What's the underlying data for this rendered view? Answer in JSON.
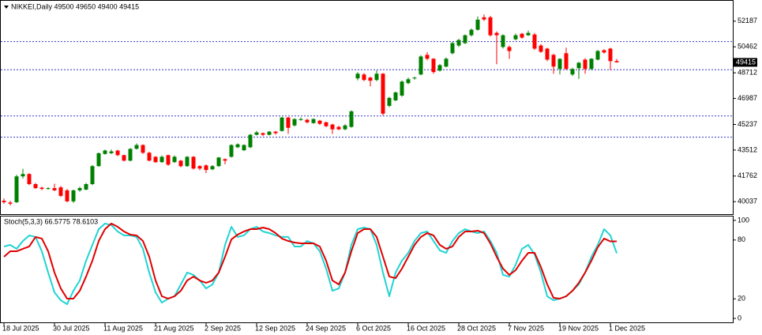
{
  "chart_data": [
    {
      "type": "candlestick",
      "title": "NIKKEI,Daily 49500 49650 49400 49415",
      "up_color": "#008000",
      "down_color": "#ff0000",
      "level_color": "#3535c8",
      "categories": [
        "18 Jul 2025",
        null,
        null,
        null,
        null,
        null,
        null,
        null,
        "30 Jul 2025",
        null,
        null,
        null,
        null,
        null,
        null,
        null,
        "11 Aug 2025",
        null,
        null,
        null,
        null,
        null,
        null,
        null,
        "21 Aug 2025",
        null,
        null,
        null,
        null,
        null,
        null,
        null,
        "2 Sep 2025",
        null,
        null,
        null,
        null,
        null,
        null,
        null,
        "12 Sep 2025",
        null,
        null,
        null,
        null,
        null,
        null,
        null,
        "24 Sep 2025",
        null,
        null,
        null,
        null,
        null,
        null,
        null,
        "6 Oct 2025",
        null,
        null,
        null,
        null,
        null,
        null,
        null,
        "16 Oct 2025",
        null,
        null,
        null,
        null,
        null,
        null,
        null,
        "28 Oct 2025",
        null,
        null,
        null,
        null,
        null,
        null,
        null,
        "7 Nov 2025",
        null,
        null,
        null,
        null,
        null,
        null,
        null,
        "19 Nov 2025",
        null,
        null,
        null,
        null,
        null,
        null,
        null,
        "1 Dec 2025",
        null
      ],
      "open": [
        40100,
        39980,
        40000,
        41740,
        41900,
        41220,
        40980,
        40900,
        40950,
        41000,
        40800,
        40060,
        40800,
        40850,
        41220,
        42430,
        43250,
        43300,
        43480,
        43170,
        42800,
        43600,
        43850,
        43330,
        43060,
        42700,
        43170,
        42700,
        42800,
        42430,
        43060,
        42430,
        42480,
        42220,
        42430,
        42900,
        43060,
        43700,
        43500,
        43700,
        44540,
        44650,
        44540,
        44750,
        44800,
        45700,
        45170,
        45540,
        45550,
        45330,
        45490,
        45380,
        45230,
        45070,
        44910,
        45070,
        48340,
        48600,
        48390,
        48230,
        48650,
        46490,
        46860,
        47180,
        48020,
        48340,
        48600,
        49920,
        49660,
        48860,
        49130,
        50030,
        50550,
        50710,
        51240,
        51610,
        52450,
        52450,
        51400,
        50450,
        50450,
        50970,
        51340,
        51240,
        51290,
        50550,
        50340,
        49920,
        48970,
        50030,
        48600,
        49020,
        49600,
        48970,
        49600,
        50230,
        50340,
        49500
      ],
      "high": [
        40250,
        40100,
        41850,
        42250,
        41950,
        41300,
        41050,
        41000,
        41250,
        41100,
        40900,
        40850,
        41050,
        41300,
        42500,
        43350,
        43550,
        43550,
        43530,
        43200,
        43650,
        43960,
        43900,
        43400,
        43100,
        43150,
        43200,
        43150,
        42850,
        43100,
        43100,
        42500,
        42550,
        42500,
        43050,
        42950,
        43900,
        43960,
        43900,
        44600,
        44800,
        44700,
        44800,
        44800,
        45750,
        45750,
        45650,
        45700,
        45620,
        45650,
        45550,
        45420,
        45280,
        45150,
        45250,
        46180,
        48750,
        48700,
        48450,
        48870,
        48700,
        47100,
        47450,
        48200,
        48400,
        48450,
        49900,
        50100,
        49700,
        49300,
        49750,
        50800,
        51000,
        51290,
        51700,
        52500,
        52640,
        52550,
        51500,
        51300,
        50550,
        51350,
        51400,
        51550,
        51400,
        50650,
        50400,
        50000,
        49700,
        50400,
        49050,
        49450,
        49700,
        49700,
        50250,
        50300,
        50400,
        49650
      ],
      "low": [
        39900,
        39780,
        39950,
        41600,
        41150,
        40900,
        40800,
        40850,
        40750,
        40350,
        40000,
        39950,
        40700,
        40800,
        41150,
        42400,
        43200,
        43250,
        43100,
        42750,
        42750,
        43550,
        43250,
        42750,
        42650,
        42650,
        42450,
        42650,
        42350,
        42380,
        42200,
        42150,
        41950,
        42150,
        42380,
        42550,
        43000,
        43650,
        43450,
        43650,
        44500,
        44450,
        44500,
        44550,
        44750,
        44600,
        45100,
        45480,
        45300,
        45280,
        45200,
        45050,
        44600,
        44850,
        44850,
        45020,
        48200,
        48150,
        47800,
        48150,
        45850,
        46400,
        46800,
        47100,
        47950,
        48250,
        48550,
        49550,
        48650,
        48800,
        49080,
        49950,
        50450,
        50650,
        51150,
        51550,
        52200,
        51150,
        49290,
        50350,
        49650,
        50900,
        51000,
        51200,
        50250,
        50050,
        49500,
        48650,
        48600,
        48900,
        48500,
        48300,
        48650,
        48900,
        49550,
        50000,
        48900,
        49400
      ],
      "close": [
        40000,
        39900,
        41740,
        41900,
        41220,
        40950,
        40900,
        40950,
        40800,
        40430,
        40060,
        40800,
        40950,
        41220,
        42430,
        43300,
        43480,
        43420,
        43170,
        42800,
        43590,
        43850,
        43330,
        42800,
        42700,
        43060,
        42530,
        43060,
        42430,
        43060,
        42270,
        42270,
        42170,
        42430,
        43010,
        42800,
        43850,
        43900,
        43850,
        44540,
        44700,
        44540,
        44750,
        44650,
        45700,
        45010,
        45600,
        45600,
        45380,
        45600,
        45280,
        45120,
        44910,
        44910,
        45170,
        46120,
        48650,
        48230,
        48180,
        48650,
        45960,
        47020,
        47390,
        48120,
        48280,
        48390,
        49810,
        49660,
        48760,
        49230,
        49660,
        50710,
        50920,
        51240,
        51610,
        52290,
        52300,
        51240,
        51240,
        51240,
        50180,
        51240,
        51080,
        51400,
        50340,
        50130,
        49600,
        49130,
        49650,
        48970,
        48970,
        49390,
        48970,
        49660,
        50180,
        50080,
        49500,
        49415
      ],
      "levels": [
        50816,
        48917,
        45805,
        44381
      ],
      "ylim": [
        39200,
        53400
      ],
      "yticks": [
        52187,
        50462,
        48712,
        46987,
        45237,
        43512,
        41762,
        40037
      ]
    },
    {
      "type": "line",
      "title": "Stoch(5,3,3) 66.5775 78.6103",
      "series": [
        {
          "color": "#22d3d3",
          "values": [
            73.4,
            75.0,
            71.0,
            79.0,
            84.7,
            83.1,
            68.5,
            46.8,
            26.6,
            18.5,
            14.5,
            28.2,
            38.7,
            58.9,
            75.0,
            91.1,
            96.8,
            95.2,
            88.7,
            84.7,
            84.7,
            83.1,
            71.0,
            46.8,
            26.6,
            16.1,
            20.2,
            22.6,
            34.7,
            46.8,
            44.4,
            38.7,
            30.6,
            34.7,
            46.8,
            75.0,
            93.5,
            83.1,
            84.7,
            91.1,
            93.5,
            88.7,
            87.1,
            84.7,
            83.1,
            83.1,
            73.4,
            73.4,
            79.0,
            76.6,
            68.5,
            50.8,
            28.2,
            30.6,
            46.8,
            75.0,
            91.1,
            92.7,
            91.1,
            75.0,
            46.8,
            22.6,
            46.8,
            58.9,
            66.9,
            79.0,
            87.1,
            88.7,
            79.0,
            69.4,
            66.9,
            79.0,
            87.1,
            91.1,
            88.7,
            87.1,
            88.7,
            79.0,
            66.9,
            44.4,
            42.7,
            54.8,
            71.0,
            75.0,
            65.3,
            46.8,
            22.6,
            18.5,
            20.2,
            22.6,
            28.2,
            34.7,
            46.8,
            62.9,
            75.0,
            91.1,
            84.7,
            66.5775
          ]
        },
        {
          "color": "#e00000",
          "values": [
            62.9,
            68.5,
            68.5,
            71.0,
            73.4,
            83.1,
            81.5,
            68.5,
            46.8,
            30.6,
            20.2,
            20.2,
            28.2,
            42.7,
            58.9,
            79.0,
            91.1,
            96.8,
            93.5,
            88.7,
            85.5,
            84.7,
            79.0,
            62.9,
            38.7,
            22.6,
            20.2,
            22.6,
            28.2,
            38.7,
            42.7,
            38.7,
            36.3,
            38.7,
            46.8,
            62.9,
            80.6,
            85.5,
            88.7,
            91.1,
            91.1,
            92.7,
            91.1,
            87.1,
            81.5,
            79.0,
            77.4,
            76.6,
            76.6,
            76.6,
            73.4,
            58.9,
            38.7,
            34.7,
            46.8,
            68.5,
            87.1,
            91.1,
            91.1,
            83.1,
            62.9,
            42.7,
            41.1,
            50.8,
            62.9,
            75.0,
            83.1,
            87.1,
            84.7,
            75.0,
            71.0,
            73.4,
            83.1,
            88.7,
            88.7,
            89.5,
            87.1,
            76.6,
            62.9,
            50.8,
            44.4,
            49.2,
            58.9,
            66.9,
            66.9,
            52.4,
            34.7,
            21.0,
            20.2,
            22.6,
            28.2,
            36.3,
            46.8,
            58.9,
            72.6,
            81.5,
            78.6103,
            78.6103
          ]
        }
      ],
      "ylim": [
        -4,
        104
      ],
      "yticks": [
        100,
        80,
        20,
        0
      ]
    }
  ]
}
